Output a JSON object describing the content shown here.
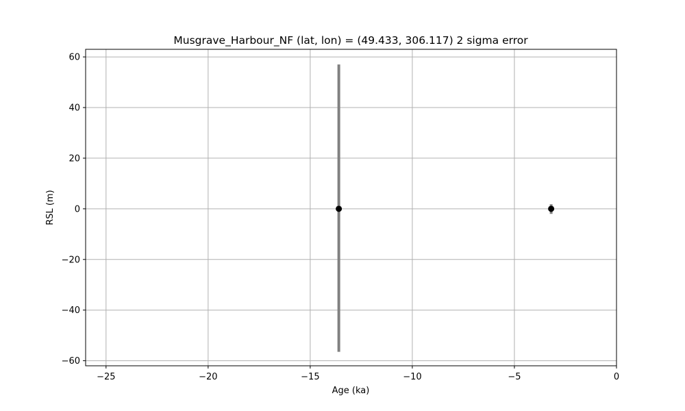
{
  "chart_data": {
    "type": "scatter",
    "title": "Musgrave_Harbour_NF (lat, lon) = (49.433, 306.117)  2 sigma error",
    "xlabel": "Age (ka)",
    "ylabel": "RSL (m)",
    "xlim": [
      -26,
      0
    ],
    "ylim": [
      -62,
      63
    ],
    "xticks": [
      -25,
      -20,
      -15,
      -10,
      -5,
      0
    ],
    "yticks": [
      -60,
      -40,
      -20,
      0,
      20,
      40,
      60
    ],
    "grid": true,
    "legend": "none",
    "points": [
      {
        "x": -13.6,
        "y": 0.0,
        "err_low": -56.5,
        "err_high": 57.0
      },
      {
        "x": -3.2,
        "y": 0.0,
        "err_low": -2.0,
        "err_high": 1.8
      }
    ],
    "colors": {
      "marker": "#000000",
      "errorbar": "#808080",
      "grid": "#b0b0b0",
      "axes": "#000000"
    }
  }
}
